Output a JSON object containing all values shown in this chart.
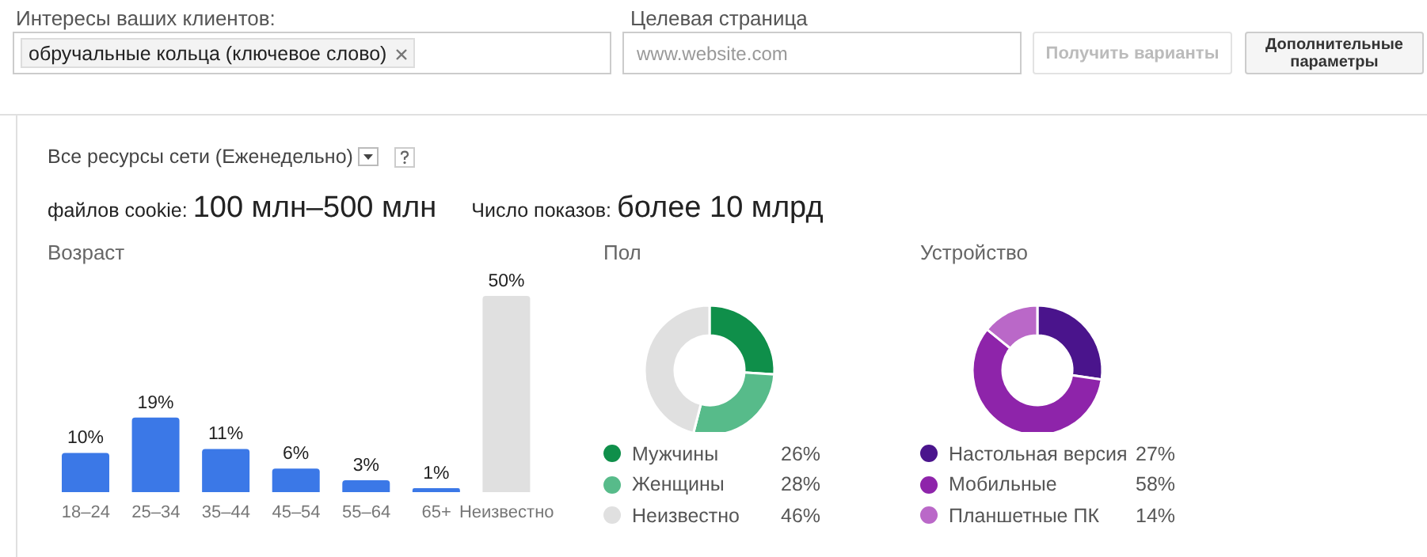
{
  "chart_data": [
    {
      "type": "other",
      "title": "Все ресурсы сети (Еженедельно)",
      "annotations": [
        "Интересы ваших клиентов:",
        "обручальные кольца (ключевое слово)",
        "Целевая страница",
        "www.website.com",
        "Получить варианты",
        "Дополнительные параметры",
        "файлов cookie:",
        "100 млн–500 млн",
        "Число показов:",
        "более 10 млрд"
      ]
    },
    {
      "type": "bar",
      "title": "Возраст",
      "categories": [
        "18–24",
        "25–34",
        "35–44",
        "45–54",
        "55–64",
        "65+",
        "Неизвестно"
      ],
      "values": [
        10,
        19,
        11,
        6,
        3,
        1,
        50
      ],
      "colors": [
        "#3b78e7",
        "#3b78e7",
        "#3b78e7",
        "#3b78e7",
        "#3b78e7",
        "#3b78e7",
        "#e0e0e0"
      ],
      "value_labels": [
        "10%",
        "19%",
        "11%",
        "6%",
        "3%",
        "1%",
        "50%"
      ]
    },
    {
      "type": "donut",
      "title": "Пол",
      "categories": [
        "Мужчины",
        "Женщины",
        "Неизвестно"
      ],
      "values": [
        26,
        28,
        46
      ],
      "colors": [
        "#0f8f4a",
        "#57bb8a",
        "#e0e0e0"
      ],
      "value_labels": [
        "26%",
        "28%",
        "46%"
      ],
      "legend": "bottom"
    },
    {
      "type": "donut",
      "title": "Устройство",
      "categories": [
        "Настольная версия",
        "Мобильные",
        "Планшетные ПК"
      ],
      "values": [
        27,
        58,
        14
      ],
      "colors": [
        "#4a148c",
        "#8e24aa",
        "#ba68c8"
      ],
      "value_labels": [
        "27%",
        "58%",
        "14%"
      ],
      "legend": "bottom"
    }
  ]
}
